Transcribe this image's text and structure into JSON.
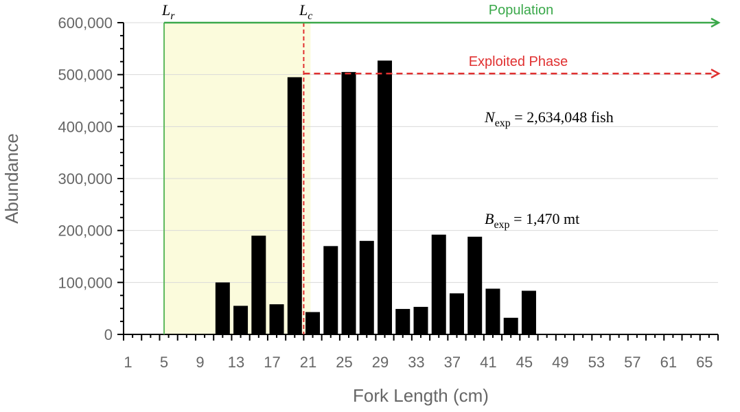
{
  "chart_data": {
    "type": "bar",
    "title": "",
    "xlabel": "Fork Length (cm)",
    "ylabel": "Abundance",
    "ylim": [
      0,
      600000
    ],
    "y_ticks": [
      0,
      100000,
      200000,
      300000,
      400000,
      500000,
      600000
    ],
    "y_tick_labels": [
      "0",
      "100,000",
      "200,000",
      "300,000",
      "400,000",
      "500,000",
      "600,000"
    ],
    "x_range": [
      0,
      66
    ],
    "x_tick_labels": [
      "1",
      "5",
      "9",
      "13",
      "17",
      "21",
      "25",
      "29",
      "33",
      "37",
      "41",
      "45",
      "49",
      "53",
      "57",
      "61",
      "65"
    ],
    "grid": true,
    "bar_color": "#000000",
    "x": [
      11,
      13,
      15,
      17,
      19,
      21,
      23,
      25,
      27,
      29,
      31,
      33,
      35,
      37,
      39,
      41,
      43,
      45
    ],
    "values": [
      100000,
      55000,
      190000,
      58000,
      495000,
      43000,
      170000,
      505000,
      180000,
      527000,
      49000,
      53000,
      192000,
      79000,
      188000,
      88000,
      32000,
      84000
    ],
    "annotations": {
      "Lr": {
        "symbol": "L",
        "subscript": "r",
        "x": 4.5,
        "color": "#5cb85c"
      },
      "Lc": {
        "symbol": "L",
        "subscript": "c",
        "x": 20,
        "color": "#e03030"
      },
      "recruit_zone_color": "#fbfbdc",
      "population": {
        "label": "Population",
        "color": "#3aa84a",
        "y": 600000
      },
      "exploited": {
        "label": "Exploited Phase",
        "color": "#e03030",
        "y": 502000
      },
      "n_exp": {
        "symbol": "N",
        "subscript": "exp",
        "text": " = 2,634,048 fish"
      },
      "b_exp": {
        "symbol": "B",
        "subscript": "exp",
        "text": " = 1,470 mt"
      }
    }
  }
}
